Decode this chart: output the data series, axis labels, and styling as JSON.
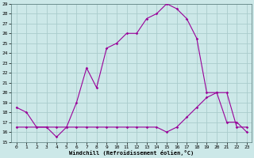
{
  "xlabel": "Windchill (Refroidissement éolien,°C)",
  "background_color": "#cce8e8",
  "grid_color": "#aacccc",
  "line_color": "#990099",
  "x_hours": [
    0,
    1,
    2,
    3,
    4,
    5,
    6,
    7,
    8,
    9,
    10,
    11,
    12,
    13,
    14,
    15,
    16,
    17,
    18,
    19,
    20,
    21,
    22,
    23
  ],
  "temp_line": [
    18.5,
    18.0,
    16.5,
    16.5,
    15.5,
    16.5,
    19.0,
    22.5,
    20.5,
    24.5,
    25.0,
    26.0,
    26.0,
    27.5,
    28.0,
    29.0,
    28.5,
    27.5,
    25.5,
    20.0,
    20.0,
    17.0,
    17.0,
    16.0
  ],
  "windchill_line": [
    16.5,
    16.5,
    16.5,
    16.5,
    16.5,
    16.5,
    16.5,
    16.5,
    16.5,
    16.5,
    16.5,
    16.5,
    16.5,
    16.5,
    16.5,
    16.0,
    16.5,
    17.5,
    18.5,
    19.5,
    20.0,
    20.0,
    16.5,
    16.5
  ],
  "ylim": [
    15,
    29
  ],
  "yticks": [
    15,
    16,
    17,
    18,
    19,
    20,
    21,
    22,
    23,
    24,
    25,
    26,
    27,
    28,
    29
  ],
  "xlim": [
    -0.5,
    23.5
  ],
  "xticks": [
    0,
    1,
    2,
    3,
    4,
    5,
    6,
    7,
    8,
    9,
    10,
    11,
    12,
    13,
    14,
    15,
    16,
    17,
    18,
    19,
    20,
    21,
    22,
    23
  ]
}
